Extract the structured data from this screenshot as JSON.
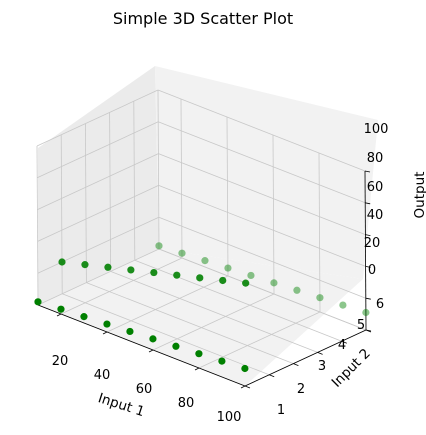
{
  "chart_data": {
    "type": "scatter",
    "projection": "3d",
    "title": "Simple 3D Scatter Plot",
    "xlabel": "Input 1",
    "ylabel": "Input 2",
    "zlabel": "Output",
    "x_ticks": [
      "20",
      "40",
      "60",
      "80",
      "100"
    ],
    "y_ticks": [
      "1",
      "2",
      "3",
      "4",
      "5",
      "6"
    ],
    "z_ticks": [
      "0",
      "20",
      "40",
      "60",
      "80",
      "100"
    ],
    "xlim": [
      10,
      100
    ],
    "ylim": [
      1,
      6
    ],
    "zlim": [
      0,
      100
    ],
    "grid": true,
    "marker_color": "#008000",
    "points": [
      {
        "x": 10,
        "y": 1,
        "z": 2
      },
      {
        "x": 20,
        "y": 1,
        "z": 3
      },
      {
        "x": 30,
        "y": 1,
        "z": 4
      },
      {
        "x": 40,
        "y": 1,
        "z": 5
      },
      {
        "x": 50,
        "y": 1,
        "z": 6
      },
      {
        "x": 60,
        "y": 1,
        "z": 7
      },
      {
        "x": 70,
        "y": 1,
        "z": 8
      },
      {
        "x": 80,
        "y": 1,
        "z": 9
      },
      {
        "x": 90,
        "y": 1,
        "z": 10
      },
      {
        "x": 100,
        "y": 1,
        "z": 11
      },
      {
        "x": 10,
        "y": 2,
        "z": 20
      },
      {
        "x": 20,
        "y": 2,
        "z": 24
      },
      {
        "x": 30,
        "y": 2,
        "z": 28
      },
      {
        "x": 40,
        "y": 2,
        "z": 32
      },
      {
        "x": 50,
        "y": 2,
        "z": 36
      },
      {
        "x": 60,
        "y": 2,
        "z": 40
      },
      {
        "x": 70,
        "y": 2,
        "z": 44
      },
      {
        "x": 80,
        "y": 2,
        "z": 48
      },
      {
        "x": 90,
        "y": 2,
        "z": 52
      },
      {
        "x": 10,
        "y": 6,
        "z": 2
      },
      {
        "x": 20,
        "y": 6,
        "z": 3
      },
      {
        "x": 30,
        "y": 6,
        "z": 4
      },
      {
        "x": 40,
        "y": 6,
        "z": 5
      },
      {
        "x": 50,
        "y": 6,
        "z": 6
      },
      {
        "x": 60,
        "y": 6,
        "z": 7
      },
      {
        "x": 70,
        "y": 6,
        "z": 8
      },
      {
        "x": 80,
        "y": 6,
        "z": 9
      },
      {
        "x": 90,
        "y": 6,
        "z": 10
      },
      {
        "x": 100,
        "y": 6,
        "z": 11
      }
    ]
  }
}
